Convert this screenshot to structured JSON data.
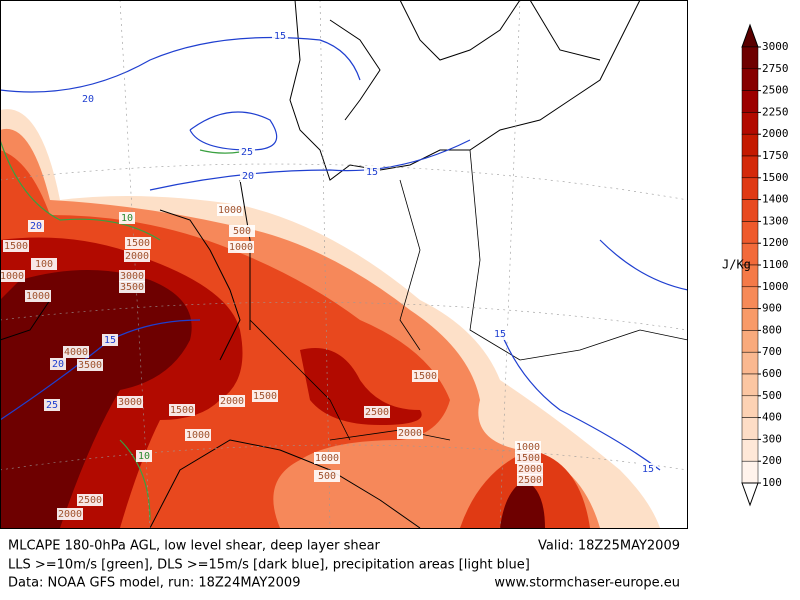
{
  "map": {
    "colorbar": {
      "unit": "J/Kg",
      "ticks": [
        3000,
        2750,
        2500,
        2250,
        2000,
        1750,
        1500,
        1400,
        1300,
        1200,
        1100,
        1000,
        900,
        800,
        700,
        600,
        500,
        400,
        300,
        200,
        100
      ],
      "colors": [
        "#5a0000",
        "#6e0000",
        "#860000",
        "#9c0000",
        "#b20a00",
        "#c41a00",
        "#d42a0a",
        "#e03a14",
        "#e84a20",
        "#ee5a2c",
        "#f26a3a",
        "#f47a48",
        "#f68a58",
        "#f89a68",
        "#f9aa7c",
        "#fab890",
        "#fbc6a2",
        "#fcd2b4",
        "#fdddc6",
        "#fee8d8",
        "#fff3ec",
        "#ffffff"
      ]
    },
    "contour_labels": [
      "15",
      "20",
      "25",
      "20",
      "15",
      "10",
      "20",
      "1000",
      "500",
      "1000",
      "1500",
      "1500",
      "2000",
      "100",
      "1000",
      "3000",
      "3500",
      "1000",
      "15",
      "4000",
      "20",
      "3500",
      "25",
      "3000",
      "1500",
      "2000",
      "1500",
      "1000",
      "1500",
      "2500",
      "2000",
      "15",
      "15",
      "10",
      "1000",
      "500",
      "1000",
      "1500",
      "2000",
      "2500",
      "2500",
      "2000"
    ],
    "footer": {
      "title": "MLCAPE 180-0hPa AGL, low level shear, deep layer shear",
      "valid": "Valid: 18Z25MAY2009",
      "legend": "LLS >=10m/s [green], DLS >=15m/s [dark blue], precipitation areas [light blue]",
      "source": "Data: NOAA GFS model, run: 18Z24MAY2009",
      "website": "www.stormchaser-europe.eu"
    }
  }
}
